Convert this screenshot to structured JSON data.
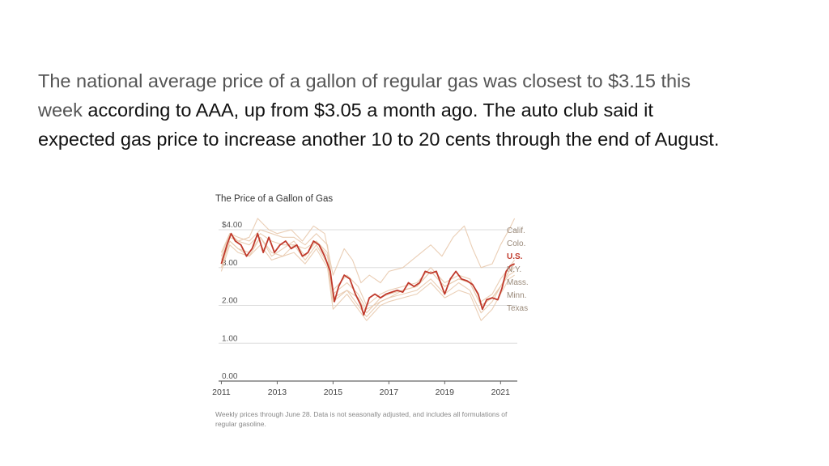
{
  "article": {
    "text_muted": "The national average price of a gallon of regular gas was closest to $3.15 this week",
    "text_main": " according to AAA, up from $3.05 a month ago. The auto club said it expected gas price to increase another 10 to 20 cents through the end of August."
  },
  "colors": {
    "us": "#c0392b",
    "states": "#e8c9ad",
    "gridline": "#dddddd",
    "axis": "#666666"
  },
  "chart_data": {
    "type": "line",
    "title": "The Price of a Gallon of Gas",
    "note": "Weekly prices through June 28. Data is not seasonally adjusted, and includes all formulations of regular gasoline.",
    "ylim": [
      0,
      4
    ],
    "xlim": [
      2010.9,
      2021.6
    ],
    "y_ticks": [
      {
        "value": 4,
        "label": "$4.00"
      },
      {
        "value": 3,
        "label": "3.00"
      },
      {
        "value": 2,
        "label": "2.00"
      },
      {
        "value": 1,
        "label": "1.00"
      },
      {
        "value": 0,
        "label": "0.00"
      }
    ],
    "x_ticks": [
      {
        "value": 2011,
        "label": "2011"
      },
      {
        "value": 2013,
        "label": "2013"
      },
      {
        "value": 2015,
        "label": "2015"
      },
      {
        "value": 2017,
        "label": "2017"
      },
      {
        "value": 2019,
        "label": "2019"
      },
      {
        "value": 2021,
        "label": "2021"
      }
    ],
    "series": [
      {
        "name": "Calif.",
        "highlight": false,
        "x": [
          2011.0,
          2011.3,
          2011.6,
          2012.0,
          2012.3,
          2012.7,
          2013.0,
          2013.5,
          2013.9,
          2014.3,
          2014.7,
          2015.0,
          2015.4,
          2015.7,
          2016.0,
          2016.3,
          2016.7,
          2017.0,
          2017.5,
          2018.0,
          2018.5,
          2018.9,
          2019.3,
          2019.7,
          2020.0,
          2020.3,
          2020.7,
          2021.0,
          2021.3,
          2021.5
        ],
        "y": [
          3.4,
          3.9,
          3.7,
          3.8,
          4.3,
          4.0,
          3.9,
          4.0,
          3.7,
          4.1,
          3.9,
          2.8,
          3.5,
          3.2,
          2.6,
          2.8,
          2.6,
          2.9,
          3.0,
          3.3,
          3.6,
          3.3,
          3.8,
          4.1,
          3.5,
          3.0,
          3.1,
          3.6,
          4.0,
          4.3
        ]
      },
      {
        "name": "Colo.",
        "highlight": false,
        "x": [
          2011.0,
          2011.3,
          2011.6,
          2012.0,
          2012.4,
          2012.8,
          2013.2,
          2013.6,
          2014.0,
          2014.4,
          2014.8,
          2015.0,
          2015.5,
          2015.9,
          2016.2,
          2016.7,
          2017.0,
          2017.5,
          2018.0,
          2018.5,
          2019.0,
          2019.5,
          2019.9,
          2020.3,
          2020.7,
          2021.0,
          2021.3,
          2021.5
        ],
        "y": [
          3.1,
          3.7,
          3.5,
          3.4,
          3.8,
          3.3,
          3.5,
          3.7,
          3.3,
          3.7,
          3.3,
          2.2,
          2.4,
          2.2,
          1.8,
          2.2,
          2.3,
          2.4,
          2.5,
          2.9,
          2.5,
          2.7,
          2.6,
          2.0,
          2.2,
          2.5,
          2.9,
          3.1
        ]
      },
      {
        "name": "N.Y.",
        "highlight": false,
        "x": [
          2011.0,
          2011.3,
          2011.6,
          2012.0,
          2012.4,
          2012.8,
          2013.2,
          2013.6,
          2014.0,
          2014.4,
          2014.8,
          2015.0,
          2015.5,
          2015.9,
          2016.2,
          2016.7,
          2017.0,
          2017.5,
          2018.0,
          2018.5,
          2019.0,
          2019.5,
          2019.9,
          2020.3,
          2020.7,
          2021.0,
          2021.3,
          2021.5
        ],
        "y": [
          3.3,
          3.9,
          3.8,
          3.7,
          4.0,
          3.9,
          3.8,
          3.8,
          3.6,
          3.9,
          3.6,
          2.4,
          2.8,
          2.5,
          2.0,
          2.3,
          2.4,
          2.5,
          2.6,
          3.0,
          2.6,
          2.8,
          2.7,
          2.1,
          2.3,
          2.7,
          3.0,
          3.2
        ]
      },
      {
        "name": "Mass.",
        "highlight": false,
        "x": [
          2011.0,
          2011.3,
          2011.6,
          2012.0,
          2012.4,
          2012.8,
          2013.2,
          2013.6,
          2014.0,
          2014.4,
          2014.8,
          2015.0,
          2015.5,
          2015.9,
          2016.2,
          2016.7,
          2017.0,
          2017.5,
          2018.0,
          2018.5,
          2019.0,
          2019.5,
          2019.9,
          2020.3,
          2020.7,
          2021.0,
          2021.3,
          2021.5
        ],
        "y": [
          3.2,
          3.8,
          3.7,
          3.6,
          3.9,
          3.7,
          3.6,
          3.6,
          3.5,
          3.7,
          3.4,
          2.3,
          2.6,
          2.3,
          1.9,
          2.1,
          2.2,
          2.4,
          2.5,
          2.9,
          2.5,
          2.7,
          2.6,
          2.0,
          2.2,
          2.5,
          2.9,
          3.0
        ]
      },
      {
        "name": "Minn.",
        "highlight": false,
        "x": [
          2011.0,
          2011.3,
          2011.6,
          2012.0,
          2012.4,
          2012.8,
          2013.2,
          2013.6,
          2014.0,
          2014.4,
          2014.8,
          2015.0,
          2015.5,
          2015.9,
          2016.2,
          2016.7,
          2017.0,
          2017.5,
          2018.0,
          2018.5,
          2019.0,
          2019.5,
          2019.9,
          2020.3,
          2020.7,
          2021.0,
          2021.3,
          2021.5
        ],
        "y": [
          3.0,
          3.7,
          3.5,
          3.3,
          3.8,
          3.4,
          3.3,
          3.6,
          3.2,
          3.6,
          3.1,
          2.1,
          2.4,
          2.0,
          1.7,
          2.1,
          2.2,
          2.3,
          2.4,
          2.7,
          2.3,
          2.6,
          2.4,
          1.8,
          2.1,
          2.5,
          2.8,
          2.9
        ]
      },
      {
        "name": "Texas",
        "highlight": false,
        "x": [
          2011.0,
          2011.3,
          2011.6,
          2012.0,
          2012.4,
          2012.8,
          2013.2,
          2013.6,
          2014.0,
          2014.4,
          2014.8,
          2015.0,
          2015.5,
          2015.9,
          2016.2,
          2016.7,
          2017.0,
          2017.5,
          2018.0,
          2018.5,
          2019.0,
          2019.5,
          2019.9,
          2020.3,
          2020.7,
          2021.0,
          2021.3,
          2021.5
        ],
        "y": [
          2.9,
          3.6,
          3.4,
          3.3,
          3.6,
          3.2,
          3.3,
          3.4,
          3.1,
          3.5,
          3.0,
          1.9,
          2.3,
          1.9,
          1.6,
          2.0,
          2.1,
          2.2,
          2.3,
          2.6,
          2.2,
          2.4,
          2.3,
          1.6,
          1.9,
          2.3,
          2.7,
          2.8
        ]
      },
      {
        "name": "U.S.",
        "highlight": true,
        "x": [
          2011.0,
          2011.2,
          2011.35,
          2011.5,
          2011.7,
          2011.9,
          2012.1,
          2012.3,
          2012.5,
          2012.7,
          2012.9,
          2013.1,
          2013.3,
          2013.5,
          2013.7,
          2013.9,
          2014.1,
          2014.3,
          2014.5,
          2014.7,
          2014.9,
          2015.05,
          2015.2,
          2015.4,
          2015.6,
          2015.8,
          2016.0,
          2016.1,
          2016.3,
          2016.5,
          2016.7,
          2016.9,
          2017.1,
          2017.3,
          2017.5,
          2017.7,
          2017.9,
          2018.1,
          2018.3,
          2018.5,
          2018.7,
          2018.9,
          2019.0,
          2019.2,
          2019.4,
          2019.6,
          2019.8,
          2020.0,
          2020.2,
          2020.35,
          2020.5,
          2020.7,
          2020.9,
          2021.05,
          2021.2,
          2021.35,
          2021.5
        ],
        "y": [
          3.1,
          3.6,
          3.9,
          3.7,
          3.6,
          3.3,
          3.5,
          3.9,
          3.4,
          3.8,
          3.4,
          3.6,
          3.7,
          3.5,
          3.6,
          3.3,
          3.4,
          3.7,
          3.6,
          3.3,
          2.9,
          2.1,
          2.5,
          2.8,
          2.7,
          2.3,
          2.0,
          1.75,
          2.2,
          2.3,
          2.2,
          2.3,
          2.35,
          2.4,
          2.35,
          2.6,
          2.5,
          2.6,
          2.9,
          2.85,
          2.9,
          2.5,
          2.3,
          2.7,
          2.9,
          2.7,
          2.65,
          2.55,
          2.3,
          1.9,
          2.15,
          2.2,
          2.15,
          2.45,
          2.9,
          3.05,
          3.1
        ]
      }
    ]
  }
}
